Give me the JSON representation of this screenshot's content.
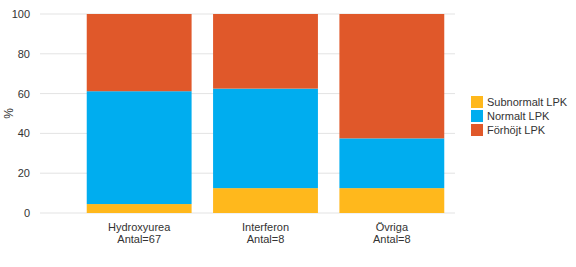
{
  "chart_data": {
    "type": "bar",
    "stacked": true,
    "y_label": "%",
    "categories": [
      "Hydroxyurea\nAntal=67",
      "Interferon\nAntal=8",
      "Övriga\nAntal=8"
    ],
    "series": [
      {
        "name": "Subnormalt LPK",
        "color": "#ffb81c",
        "values": [
          4.5,
          12.5,
          12.5
        ]
      },
      {
        "name": "Normalt LPK",
        "color": "#00adef",
        "values": [
          56.7,
          50,
          25
        ]
      },
      {
        "name": "Förhöjt LPK",
        "color": "#e0582a",
        "values": [
          38.8,
          37.5,
          62.5
        ]
      }
    ],
    "ylim": [
      0,
      100
    ],
    "yticks": [
      0,
      20,
      40,
      60,
      80,
      100
    ],
    "grid": true,
    "legend": "right"
  }
}
